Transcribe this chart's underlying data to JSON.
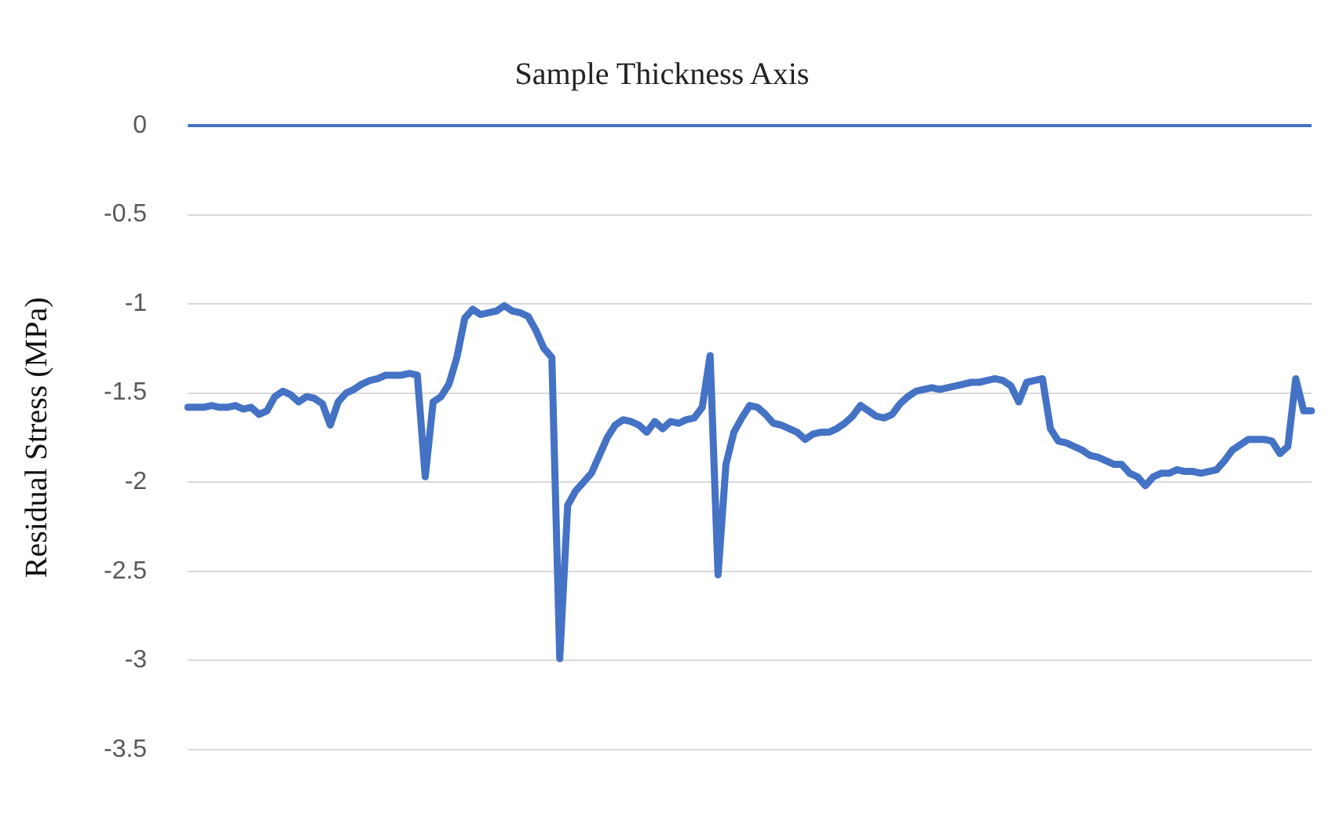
{
  "chart_data": {
    "type": "line",
    "title": "Sample Thickness Axis",
    "ylabel": "Residual Stress (MPa)",
    "categories": [
      null,
      null,
      null,
      null,
      null,
      null,
      null,
      null,
      null,
      null,
      null,
      null,
      null,
      null,
      null,
      null,
      null,
      null,
      null,
      null,
      null,
      null,
      null,
      null,
      null,
      null,
      null,
      null,
      null,
      null,
      null,
      null,
      null,
      null,
      null,
      null,
      null,
      null,
      null,
      null,
      null,
      null,
      null,
      null,
      null,
      null,
      null,
      null,
      null,
      null,
      null,
      null,
      null,
      null,
      null,
      null,
      null,
      null,
      null,
      null,
      null,
      null,
      null,
      null,
      null,
      null,
      null,
      null,
      null,
      null,
      null,
      null,
      null,
      null,
      null,
      null,
      null,
      null,
      null,
      null,
      null,
      null,
      null,
      null,
      null,
      null,
      null,
      null,
      null,
      null,
      null,
      null,
      null,
      null,
      null,
      null,
      null,
      null,
      null,
      null,
      null,
      null,
      null,
      null,
      null,
      null,
      null,
      null,
      null,
      null,
      null,
      null,
      null,
      null,
      null,
      null,
      null,
      null,
      null,
      null,
      null,
      null,
      null,
      null,
      null,
      null,
      null,
      null,
      null,
      null,
      null,
      null,
      null,
      null,
      null,
      null,
      null,
      null,
      null,
      null,
      null,
      null,
      null
    ],
    "series": [
      {
        "color": "#4472c4",
        "values": [
          -1.58,
          -1.58,
          -1.58,
          -1.57,
          -1.58,
          -1.58,
          -1.57,
          -1.59,
          -1.58,
          -1.62,
          -1.6,
          -1.52,
          -1.49,
          -1.51,
          -1.55,
          -1.52,
          -1.53,
          -1.56,
          -1.68,
          -1.55,
          -1.5,
          -1.48,
          -1.45,
          -1.43,
          -1.42,
          -1.4,
          -1.4,
          -1.4,
          -1.39,
          -1.4,
          -1.97,
          -1.55,
          -1.52,
          -1.45,
          -1.3,
          -1.08,
          -1.03,
          -1.06,
          -1.05,
          -1.04,
          -1.01,
          -1.04,
          -1.05,
          -1.07,
          -1.15,
          -1.25,
          -1.3,
          -2.99,
          -2.13,
          -2.05,
          -2.0,
          -1.95,
          -1.85,
          -1.75,
          -1.68,
          -1.65,
          -1.66,
          -1.68,
          -1.72,
          -1.66,
          -1.7,
          -1.66,
          -1.67,
          -1.65,
          -1.64,
          -1.58,
          -1.29,
          -2.52,
          -1.9,
          -1.72,
          -1.64,
          -1.57,
          -1.58,
          -1.62,
          -1.67,
          -1.68,
          -1.7,
          -1.72,
          -1.76,
          -1.73,
          -1.72,
          -1.72,
          -1.7,
          -1.67,
          -1.63,
          -1.57,
          -1.6,
          -1.63,
          -1.64,
          -1.62,
          -1.56,
          -1.52,
          -1.49,
          -1.48,
          -1.47,
          -1.48,
          -1.47,
          -1.46,
          -1.45,
          -1.44,
          -1.44,
          -1.43,
          -1.42,
          -1.43,
          -1.46,
          -1.55,
          -1.44,
          -1.43,
          -1.42,
          -1.7,
          -1.77,
          -1.78,
          -1.8,
          -1.82,
          -1.85,
          -1.86,
          -1.88,
          -1.9,
          -1.9,
          -1.95,
          -1.97,
          -2.02,
          -1.97,
          -1.95,
          -1.95,
          -1.93,
          -1.94,
          -1.94,
          -1.95,
          -1.94,
          -1.93,
          -1.88,
          -1.82,
          -1.79,
          -1.76,
          -1.76,
          -1.76,
          -1.77,
          -1.84,
          -1.8,
          -1.42,
          -1.6,
          -1.6
        ]
      }
    ],
    "ylim": [
      -3.5,
      0
    ],
    "yticks": [
      0,
      -0.5,
      -1,
      -1.5,
      -2,
      -2.5,
      -3,
      -3.5
    ],
    "grid": "y",
    "marker": "none",
    "line_style": "solid",
    "legend": false,
    "tick_labels": "y",
    "ref_lines": [
      {
        "axis": "y",
        "value": 0,
        "color": "#4472c4"
      }
    ]
  }
}
